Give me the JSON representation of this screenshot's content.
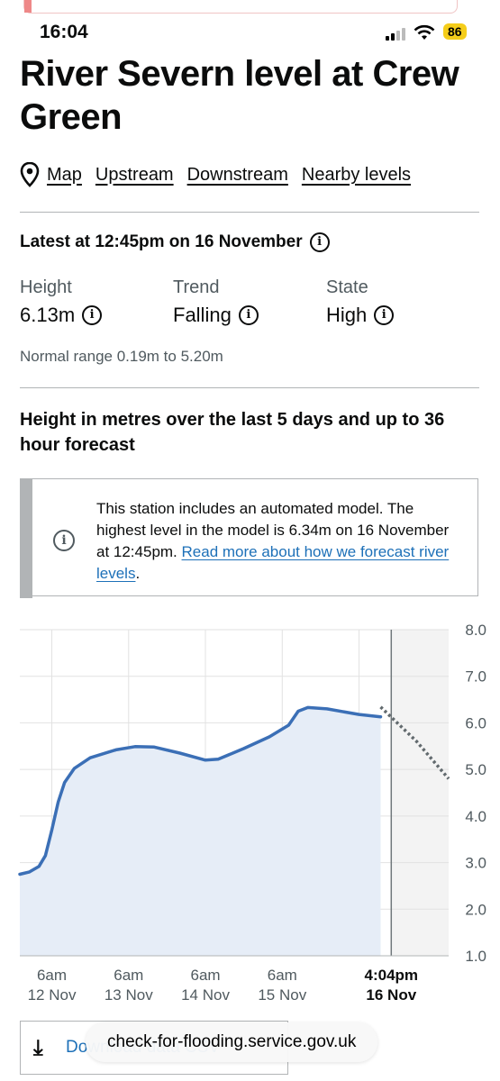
{
  "status": {
    "time": "16:04",
    "battery": "86"
  },
  "header": {
    "title": "River Severn level at Crew Green"
  },
  "links": [
    "Map",
    "Upstream",
    "Downstream",
    "Nearby levels"
  ],
  "latest": {
    "heading": "Latest at 12:45pm on 16 November",
    "stats": [
      {
        "label": "Height",
        "value": "6.13m"
      },
      {
        "label": "Trend",
        "value": "Falling"
      },
      {
        "label": "State",
        "value": "High"
      }
    ],
    "normal_range": "Normal range 0.19m to 5.20m"
  },
  "chart_section": {
    "title": "Height in metres over the last 5 days and up to 36 hour forecast",
    "notice_text": "This station includes an automated model. The highest level in the model is 6.34m on 16 November at 12:45pm. ",
    "notice_link": "Read more about how we forecast river levels",
    "notice_end": "."
  },
  "chart_data": {
    "type": "line",
    "ylim": [
      1.0,
      8.0
    ],
    "yticks": [
      "8.0",
      "7.0",
      "6.0",
      "5.0",
      "4.0",
      "3.0",
      "2.0",
      "1.0"
    ],
    "x_ticks": [
      {
        "line1": "6am",
        "line2": "12 Nov"
      },
      {
        "line1": "6am",
        "line2": "13 Nov"
      },
      {
        "line1": "6am",
        "line2": "14 Nov"
      },
      {
        "line1": "6am",
        "line2": "15 Nov"
      },
      {
        "line1": "4:04pm",
        "line2": "16 Nov"
      }
    ],
    "series": [
      {
        "kind": "observed",
        "points": [
          [
            "11 Nov 20:00",
            2.75
          ],
          [
            "11 Nov 23:00",
            2.8
          ],
          [
            "12 Nov 02:00",
            2.92
          ],
          [
            "12 Nov 04:00",
            3.15
          ],
          [
            "12 Nov 06:00",
            3.7
          ],
          [
            "12 Nov 08:00",
            4.3
          ],
          [
            "12 Nov 10:00",
            4.72
          ],
          [
            "12 Nov 13:00",
            5.02
          ],
          [
            "12 Nov 18:00",
            5.25
          ],
          [
            "13 Nov 02:00",
            5.42
          ],
          [
            "13 Nov 08:00",
            5.49
          ],
          [
            "13 Nov 14:00",
            5.48
          ],
          [
            "13 Nov 22:00",
            5.35
          ],
          [
            "14 Nov 06:00",
            5.2
          ],
          [
            "14 Nov 10:00",
            5.22
          ],
          [
            "14 Nov 18:00",
            5.45
          ],
          [
            "15 Nov 02:00",
            5.7
          ],
          [
            "15 Nov 08:00",
            5.95
          ],
          [
            "15 Nov 11:00",
            6.25
          ],
          [
            "15 Nov 14:00",
            6.33
          ],
          [
            "15 Nov 20:00",
            6.3
          ],
          [
            "16 Nov 06:00",
            6.18
          ],
          [
            "16 Nov 12:45",
            6.13
          ]
        ]
      },
      {
        "kind": "forecast",
        "points": [
          [
            "16 Nov 12:45",
            6.34
          ],
          [
            "17 Nov 00:00",
            5.6
          ],
          [
            "17 Nov 10:00",
            4.8
          ]
        ]
      }
    ]
  },
  "download": {
    "label": "Download data CSV"
  },
  "url_bar": {
    "text": "check-for-flooding.service.gov.uk"
  }
}
